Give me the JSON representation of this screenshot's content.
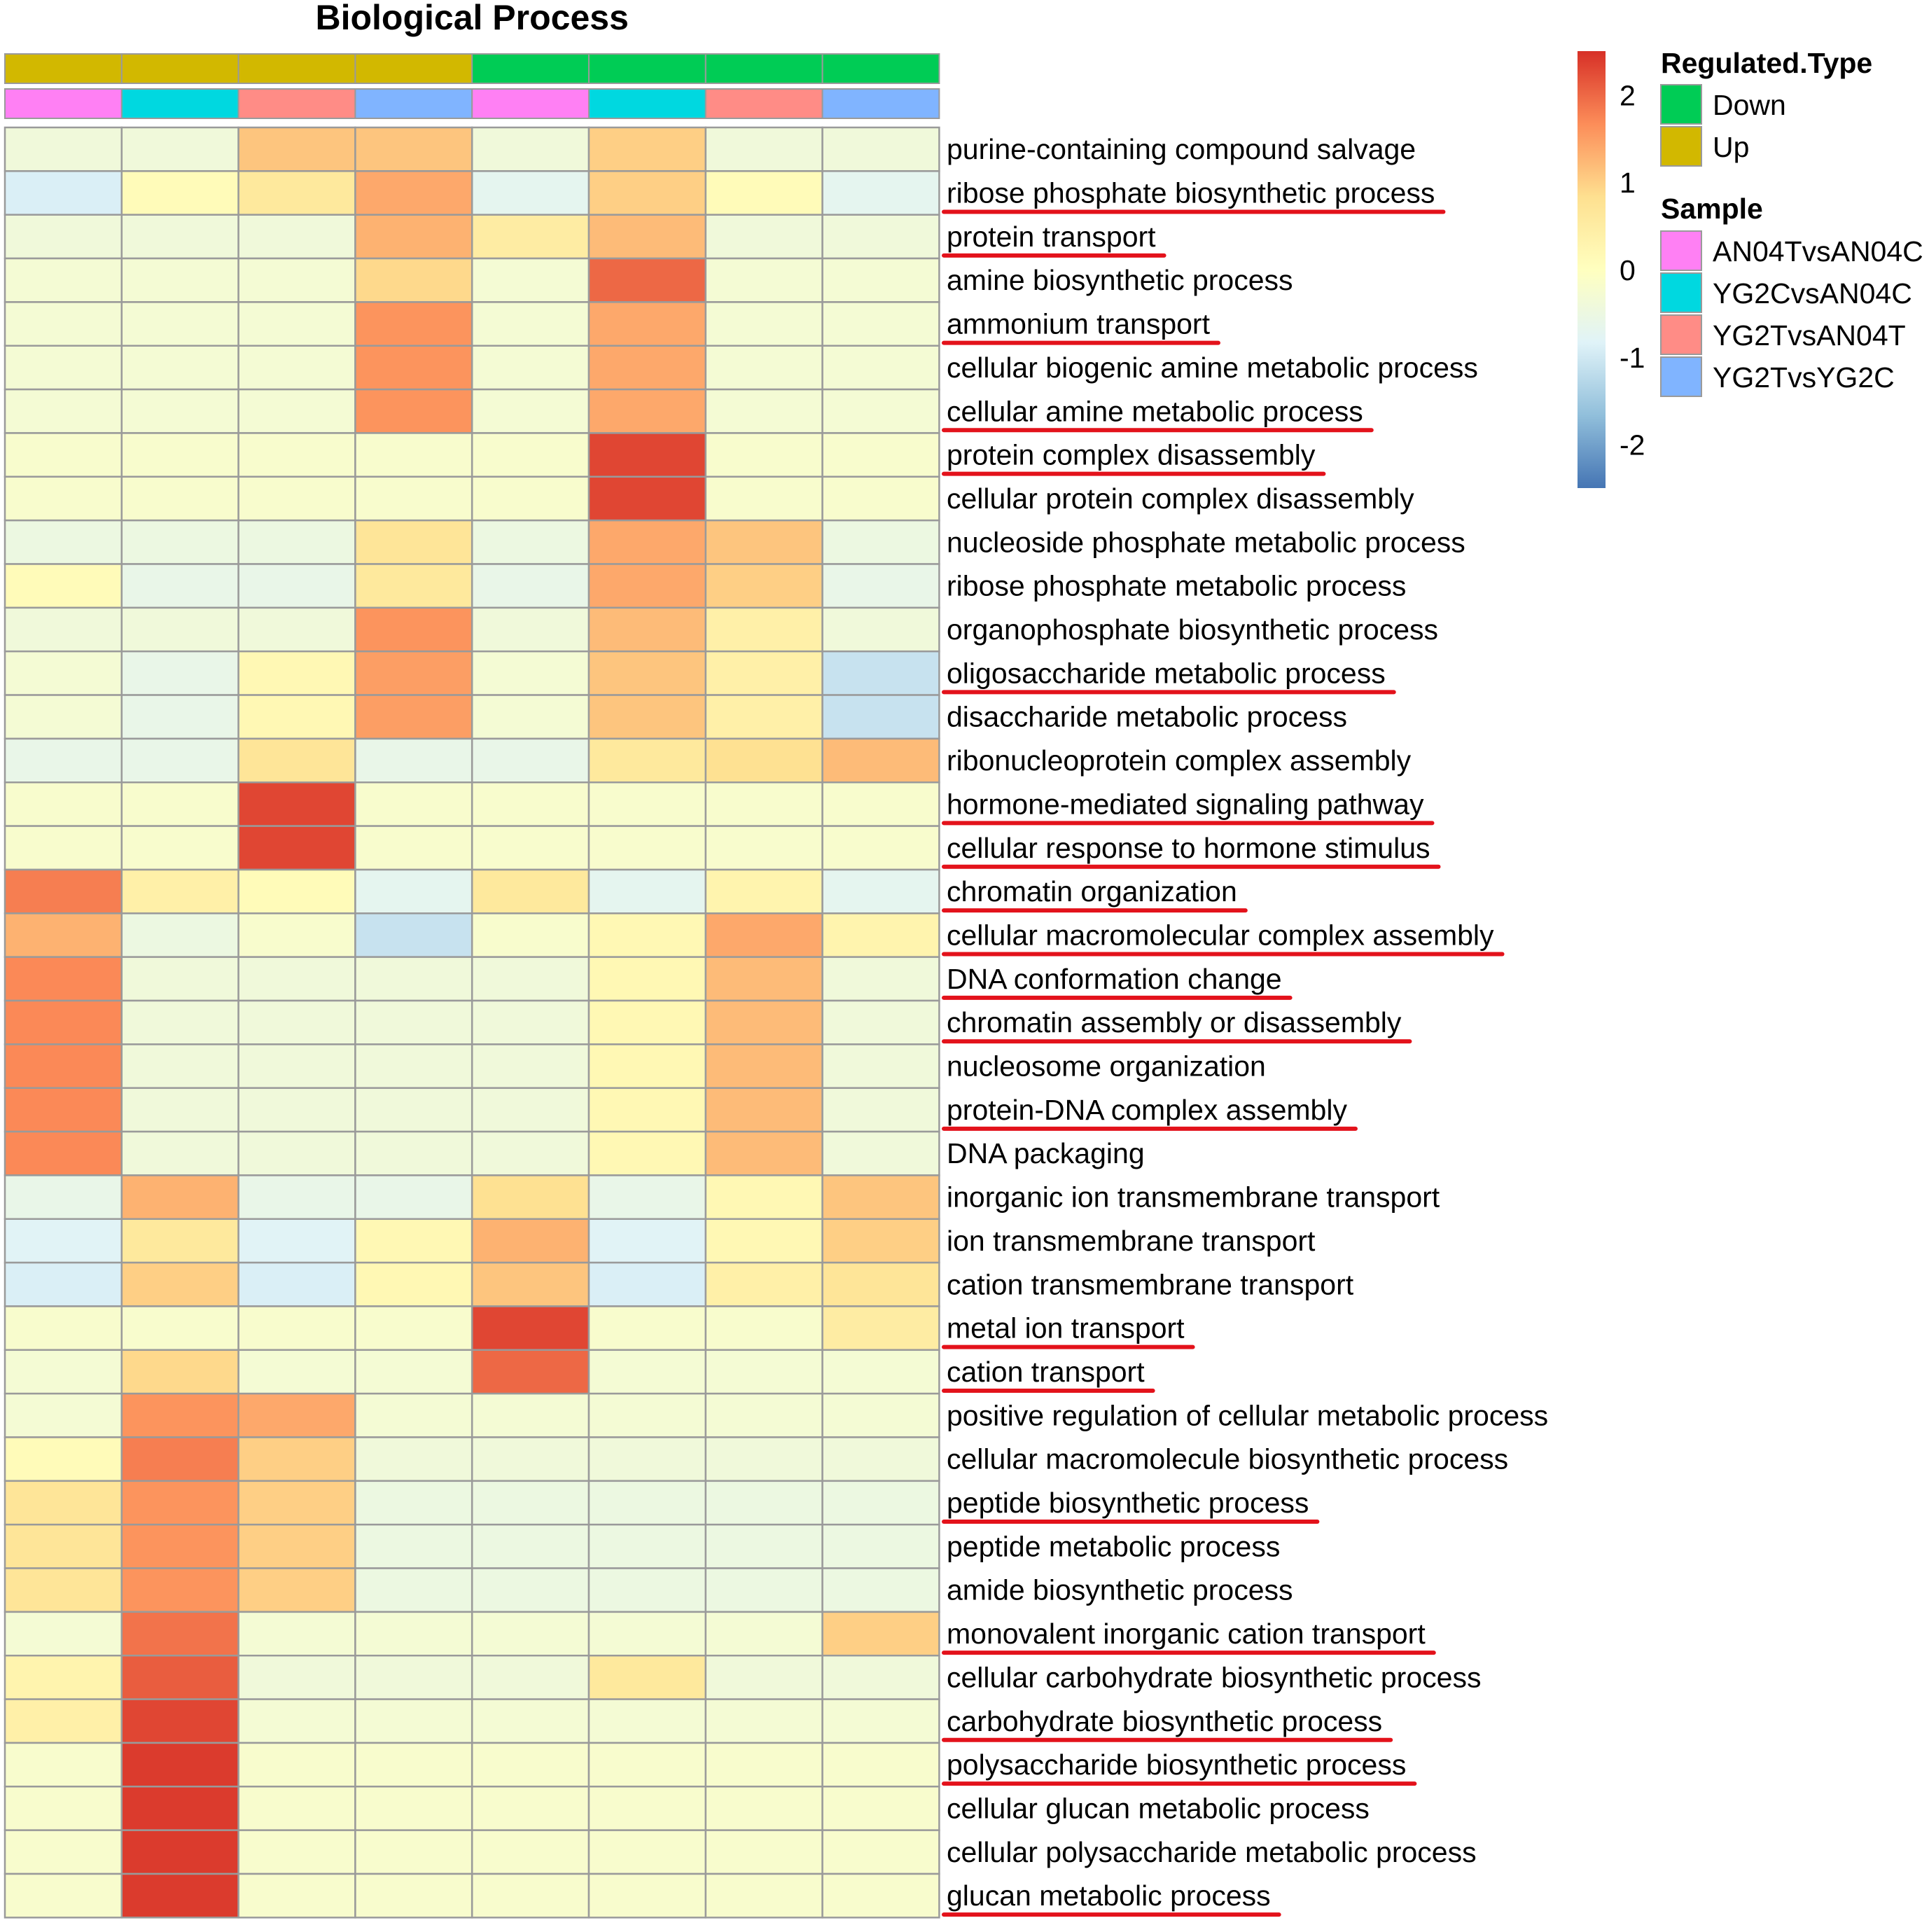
{
  "chart_data": {
    "type": "heatmap",
    "title": "Biological Process",
    "columns": [
      {
        "regulated_type": "Up",
        "sample": "AN04TvsAN04C"
      },
      {
        "regulated_type": "Up",
        "sample": "YG2CvsAN04C"
      },
      {
        "regulated_type": "Up",
        "sample": "YG2TvsAN04T"
      },
      {
        "regulated_type": "Up",
        "sample": "YG2TvsYG2C"
      },
      {
        "regulated_type": "Down",
        "sample": "AN04TvsAN04C"
      },
      {
        "regulated_type": "Down",
        "sample": "YG2CvsAN04C"
      },
      {
        "regulated_type": "Down",
        "sample": "YG2TvsAN04T"
      },
      {
        "regulated_type": "Down",
        "sample": "YG2TvsYG2C"
      }
    ],
    "rows": [
      "purine-containing compound salvage",
      "ribose phosphate biosynthetic process",
      "protein transport",
      "amine biosynthetic process",
      "ammonium transport",
      "cellular biogenic amine metabolic process",
      "cellular amine metabolic process",
      "protein complex disassembly",
      "cellular protein complex disassembly",
      "nucleoside phosphate metabolic process",
      "ribose phosphate metabolic process",
      "organophosphate biosynthetic process",
      "oligosaccharide metabolic process",
      "disaccharide metabolic process",
      "ribonucleoprotein complex assembly",
      "hormone-mediated signaling pathway",
      "cellular response to hormone stimulus",
      "chromatin organization",
      "cellular macromolecular complex assembly",
      "DNA conformation change",
      "chromatin assembly or disassembly",
      "nucleosome organization",
      "protein-DNA complex assembly",
      "DNA packaging",
      "inorganic ion transmembrane transport",
      "ion transmembrane transport",
      "cation transmembrane transport",
      "metal ion transport",
      "cation transport",
      "positive regulation of cellular metabolic process",
      "cellular macromolecule biosynthetic process",
      "peptide biosynthetic process",
      "peptide metabolic process",
      "amide biosynthetic process",
      "monovalent inorganic cation transport",
      "cellular carbohydrate biosynthetic process",
      "carbohydrate biosynthetic process",
      "polysaccharide biosynthetic process",
      "cellular glucan metabolic process",
      "cellular polysaccharide metabolic process",
      "glucan metabolic process"
    ],
    "underlined_rows": [
      "ribose phosphate biosynthetic process",
      "protein transport",
      "ammonium transport",
      "cellular amine metabolic process",
      "protein complex disassembly",
      "oligosaccharide metabolic process",
      "hormone-mediated signaling pathway",
      "cellular response to hormone stimulus",
      "chromatin organization",
      "cellular macromolecular complex assembly",
      "DNA conformation change",
      "chromatin assembly or disassembly",
      "protein-DNA complex assembly",
      "metal ion transport",
      "cation transport",
      "peptide biosynthetic process",
      "monovalent inorganic cation transport",
      "carbohydrate biosynthetic process",
      "polysaccharide biosynthetic process",
      "glucan metabolic process"
    ],
    "values": [
      [
        -0.4,
        -0.4,
        1.1,
        1.1,
        -0.4,
        1.0,
        -0.4,
        -0.4
      ],
      [
        -0.9,
        0.1,
        0.6,
        1.4,
        -0.7,
        1.0,
        0.1,
        -0.7
      ],
      [
        -0.4,
        -0.4,
        -0.4,
        1.3,
        0.5,
        1.2,
        -0.4,
        -0.4
      ],
      [
        -0.3,
        -0.3,
        -0.3,
        0.9,
        -0.3,
        2.0,
        -0.3,
        -0.3
      ],
      [
        -0.3,
        -0.3,
        -0.3,
        1.6,
        -0.3,
        1.4,
        -0.3,
        -0.3
      ],
      [
        -0.3,
        -0.3,
        -0.3,
        1.6,
        -0.3,
        1.4,
        -0.3,
        -0.3
      ],
      [
        -0.3,
        -0.3,
        -0.3,
        1.6,
        -0.3,
        1.4,
        -0.3,
        -0.3
      ],
      [
        -0.2,
        -0.2,
        -0.2,
        -0.2,
        -0.2,
        2.3,
        -0.2,
        -0.2
      ],
      [
        -0.2,
        -0.2,
        -0.2,
        -0.2,
        -0.2,
        2.3,
        -0.2,
        -0.2
      ],
      [
        -0.5,
        -0.5,
        -0.5,
        0.7,
        -0.5,
        1.4,
        1.1,
        -0.5
      ],
      [
        0.1,
        -0.6,
        -0.6,
        0.6,
        -0.6,
        1.4,
        1.0,
        -0.6
      ],
      [
        -0.4,
        -0.4,
        -0.4,
        1.6,
        -0.4,
        1.2,
        0.4,
        -0.4
      ],
      [
        -0.3,
        -0.6,
        0.2,
        1.5,
        -0.3,
        1.1,
        0.4,
        -1.1
      ],
      [
        -0.3,
        -0.6,
        0.2,
        1.5,
        -0.3,
        1.1,
        0.4,
        -1.1
      ],
      [
        -0.6,
        -0.6,
        0.7,
        -0.6,
        -0.6,
        0.6,
        0.8,
        1.2
      ],
      [
        -0.2,
        -0.2,
        2.3,
        -0.2,
        -0.2,
        -0.2,
        -0.2,
        -0.2
      ],
      [
        -0.2,
        -0.2,
        2.3,
        -0.2,
        -0.2,
        -0.2,
        -0.2,
        -0.2
      ],
      [
        1.8,
        0.4,
        0.1,
        -0.7,
        0.6,
        -0.7,
        0.3,
        -0.7
      ],
      [
        1.3,
        -0.5,
        -0.2,
        -1.1,
        -0.2,
        0.2,
        1.4,
        0.3
      ],
      [
        1.7,
        -0.4,
        -0.4,
        -0.4,
        -0.4,
        0.2,
        1.2,
        -0.4
      ],
      [
        1.7,
        -0.4,
        -0.4,
        -0.4,
        -0.4,
        0.2,
        1.2,
        -0.4
      ],
      [
        1.7,
        -0.4,
        -0.4,
        -0.4,
        -0.4,
        0.2,
        1.2,
        -0.4
      ],
      [
        1.7,
        -0.4,
        -0.4,
        -0.4,
        -0.4,
        0.2,
        1.2,
        -0.4
      ],
      [
        1.7,
        -0.4,
        -0.4,
        -0.4,
        -0.4,
        0.2,
        1.2,
        -0.4
      ],
      [
        -0.6,
        1.3,
        -0.6,
        -0.6,
        0.8,
        -0.6,
        0.2,
        1.1
      ],
      [
        -0.8,
        0.6,
        -0.8,
        0.2,
        1.3,
        -0.8,
        0.2,
        1.0
      ],
      [
        -0.9,
        1.0,
        -0.9,
        0.2,
        1.1,
        -0.9,
        0.4,
        0.7
      ],
      [
        -0.2,
        -0.2,
        -0.2,
        -0.2,
        2.3,
        -0.2,
        -0.2,
        0.5
      ],
      [
        -0.3,
        0.9,
        -0.3,
        -0.3,
        2.0,
        -0.3,
        -0.3,
        -0.3
      ],
      [
        -0.3,
        1.6,
        1.4,
        -0.3,
        -0.3,
        -0.3,
        -0.3,
        -0.3
      ],
      [
        0.1,
        1.8,
        1.0,
        -0.4,
        -0.4,
        -0.4,
        -0.4,
        -0.4
      ],
      [
        0.7,
        1.6,
        1.0,
        -0.5,
        -0.5,
        -0.5,
        -0.5,
        -0.5
      ],
      [
        0.7,
        1.6,
        1.0,
        -0.5,
        -0.5,
        -0.5,
        -0.5,
        -0.5
      ],
      [
        0.7,
        1.6,
        1.0,
        -0.5,
        -0.5,
        -0.5,
        -0.5,
        -0.5
      ],
      [
        -0.3,
        1.9,
        -0.3,
        -0.3,
        -0.3,
        -0.3,
        -0.3,
        1.0
      ],
      [
        0.3,
        2.1,
        -0.4,
        -0.4,
        -0.4,
        0.6,
        -0.4,
        -0.4
      ],
      [
        0.4,
        2.3,
        -0.3,
        -0.3,
        -0.3,
        -0.3,
        -0.3,
        -0.3
      ],
      [
        -0.2,
        2.4,
        -0.2,
        -0.2,
        -0.2,
        -0.2,
        -0.2,
        -0.2
      ],
      [
        -0.2,
        2.4,
        -0.2,
        -0.2,
        -0.2,
        -0.2,
        -0.2,
        -0.2
      ],
      [
        -0.2,
        2.4,
        -0.2,
        -0.2,
        -0.2,
        -0.2,
        -0.2,
        -0.2
      ],
      [
        -0.2,
        2.4,
        -0.2,
        -0.2,
        -0.2,
        -0.2,
        -0.2,
        -0.2
      ]
    ],
    "color_scale": {
      "range": [
        -2.5,
        2.5
      ],
      "colors": [
        "#4575b4",
        "#91bfdb",
        "#e0f3f8",
        "#ffffbf",
        "#fee090",
        "#fc8d59",
        "#d73027"
      ],
      "ticks": [
        2,
        1,
        0,
        -1,
        -2
      ],
      "tick_labels": [
        "2",
        "1",
        "0",
        "-1",
        "-2"
      ]
    },
    "legend": {
      "regulated_type": {
        "title": "Regulated.Type",
        "entries": [
          {
            "label": "Down",
            "color": "#00cc55"
          },
          {
            "label": "Up",
            "color": "#d2b800"
          }
        ]
      },
      "sample": {
        "title": "Sample",
        "entries": [
          {
            "label": "AN04TvsAN04C",
            "color": "#ff80f4"
          },
          {
            "label": "YG2CvsAN04C",
            "color": "#00d8e0"
          },
          {
            "label": "YG2TvsAN04T",
            "color": "#ff8c86"
          },
          {
            "label": "YG2TvsYG2C",
            "color": "#80b4ff"
          }
        ]
      },
      "placement": "right"
    },
    "highlight_color": "#e3121b",
    "grid_color": "#9a9a9a"
  }
}
